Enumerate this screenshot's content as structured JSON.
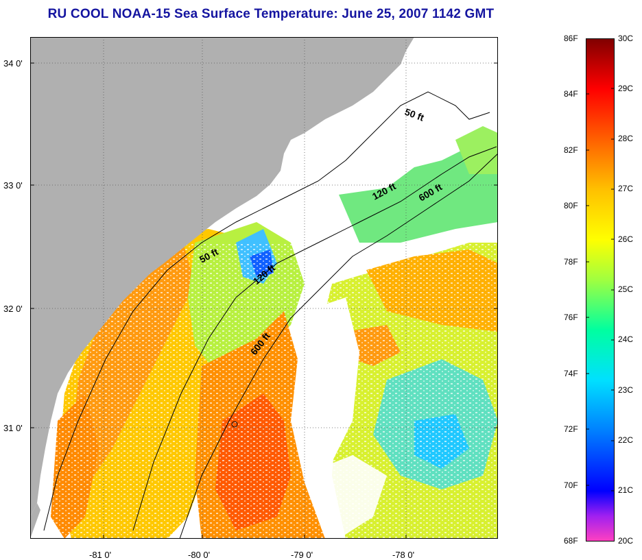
{
  "title": "RU COOL  NOAA-15  Sea Surface Temperature:  June 25, 2007 1142 GMT",
  "map": {
    "lat_ticks": [
      "34 0'",
      "33 0'",
      "32 0'",
      "31 0'"
    ],
    "lon_ticks": [
      "-81 0'",
      "-80 0'",
      "-79 0'",
      "-78 0'"
    ],
    "isobaths": [
      {
        "label": "50 ft"
      },
      {
        "label": "120 ft"
      },
      {
        "label": "600 ft"
      },
      {
        "label": "50 ft"
      },
      {
        "label": "120 ft"
      },
      {
        "label": "600 ft"
      }
    ],
    "colors": {
      "land": "#b0b0b0",
      "cloud": "#ffffff",
      "warm": "#ff8a00",
      "mid": "#f5e000",
      "cool": "#30d090"
    }
  },
  "colorbar": {
    "fahrenheit": [
      "86F",
      "84F",
      "82F",
      "80F",
      "78F",
      "76F",
      "74F",
      "72F",
      "70F",
      "68F"
    ],
    "celsius": [
      "30C",
      "29C",
      "28C",
      "27C",
      "26C",
      "25C",
      "24C",
      "23C",
      "22C",
      "21C",
      "20C"
    ],
    "stops": [
      "#ff40c0",
      "#a020f0",
      "#0000ff",
      "#0080ff",
      "#00e0ff",
      "#00ffa0",
      "#a0ff40",
      "#ffff00",
      "#ffc000",
      "#ff6000",
      "#ff0000",
      "#800000"
    ]
  }
}
